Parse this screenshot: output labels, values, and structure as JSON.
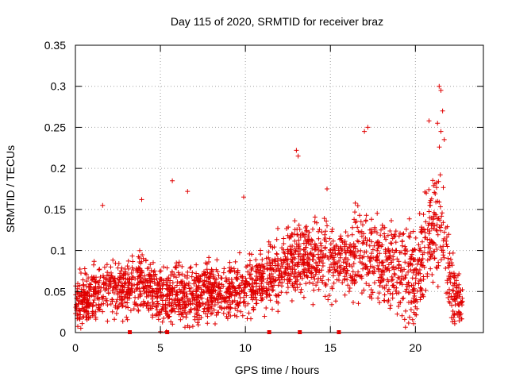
{
  "chart_data": {
    "type": "scatter",
    "title": "Day 115 of 2020, SRMTID for receiver braz",
    "xlabel": "GPS time / hours",
    "ylabel": "SRMTID / TECUs",
    "xlim": [
      0,
      24
    ],
    "ylim": [
      0,
      0.35
    ],
    "xticks": [
      0,
      5,
      10,
      15,
      20
    ],
    "xtick_labels": [
      "0",
      "5",
      "10",
      "15",
      "20"
    ],
    "yticks": [
      0,
      0.05,
      0.1,
      0.15,
      0.2,
      0.25,
      0.3,
      0.35
    ],
    "ytick_labels": [
      "0",
      "0.05",
      "0.1",
      "0.15",
      "0.2",
      "0.25",
      "0.3",
      "0.35"
    ],
    "grid": true,
    "marker": "+",
    "color": "#e00000",
    "gap_markers_x": [
      3.2,
      5.4,
      11.4,
      13.2,
      15.5
    ],
    "point_count": 2400,
    "envelope": [
      [
        0,
        0.035,
        0.028
      ],
      [
        1,
        0.045,
        0.03
      ],
      [
        2,
        0.05,
        0.03
      ],
      [
        3,
        0.055,
        0.032
      ],
      [
        4,
        0.06,
        0.035
      ],
      [
        5,
        0.045,
        0.035
      ],
      [
        6,
        0.045,
        0.035
      ],
      [
        7,
        0.045,
        0.033
      ],
      [
        8,
        0.05,
        0.03
      ],
      [
        9,
        0.05,
        0.03
      ],
      [
        10,
        0.055,
        0.03
      ],
      [
        11,
        0.06,
        0.032
      ],
      [
        12,
        0.075,
        0.035
      ],
      [
        13,
        0.09,
        0.04
      ],
      [
        14,
        0.09,
        0.04
      ],
      [
        15,
        0.09,
        0.04
      ],
      [
        16,
        0.085,
        0.045
      ],
      [
        17,
        0.1,
        0.05
      ],
      [
        18,
        0.09,
        0.05
      ],
      [
        19,
        0.08,
        0.05
      ],
      [
        20,
        0.07,
        0.05
      ],
      [
        21,
        0.12,
        0.06
      ],
      [
        21.5,
        0.14,
        0.07
      ],
      [
        22,
        0.06,
        0.04
      ],
      [
        22.8,
        0.03,
        0.02
      ]
    ],
    "outliers": [
      [
        21.4,
        0.3
      ],
      [
        21.5,
        0.295
      ],
      [
        21.6,
        0.27
      ],
      [
        21.3,
        0.255
      ],
      [
        21.5,
        0.245
      ],
      [
        20.8,
        0.258
      ],
      [
        17.2,
        0.25
      ],
      [
        17.0,
        0.245
      ],
      [
        13.0,
        0.222
      ],
      [
        13.1,
        0.215
      ],
      [
        6.6,
        0.172
      ],
      [
        5.7,
        0.185
      ],
      [
        1.6,
        0.155
      ],
      [
        9.9,
        0.165
      ],
      [
        3.9,
        0.162
      ],
      [
        14.8,
        0.175
      ],
      [
        21.7,
        0.235
      ]
    ]
  }
}
